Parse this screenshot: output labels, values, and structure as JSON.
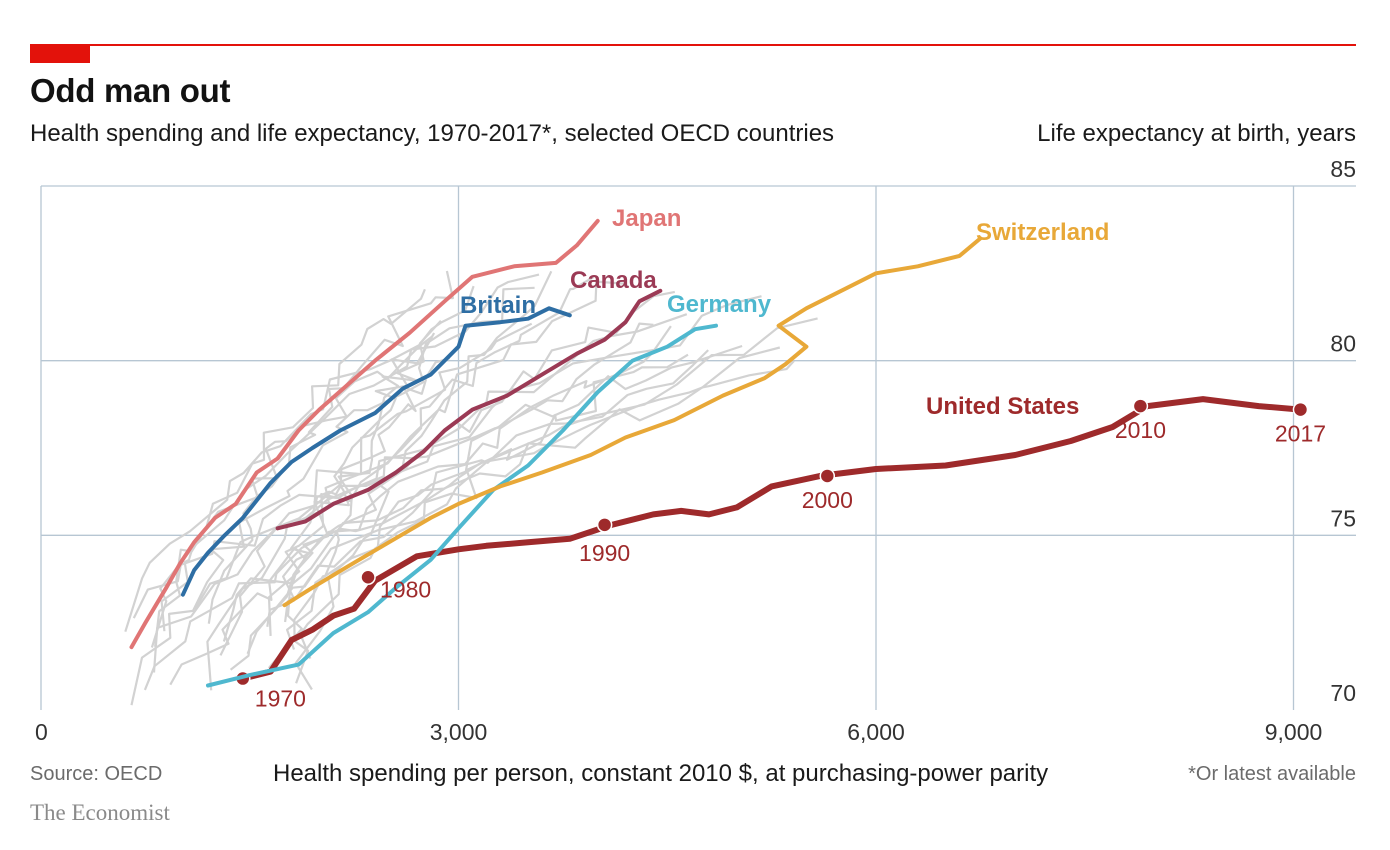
{
  "header": {
    "title": "Odd man out",
    "subtitle": "Health spending and life expectancy, 1970-2017*, selected OECD countries",
    "y_axis_label": "Life expectancy at birth, years"
  },
  "footer": {
    "source": "Source: OECD",
    "x_axis_label": "Health spending per person, constant 2010 $, at purchasing-power parity",
    "footnote": "*Or latest available",
    "brand": "The Economist"
  },
  "colors": {
    "accent": "#e3120b",
    "grid": "#b7c6d3",
    "background_lines": "#d2d2d2",
    "united_states": "#9e2a2b",
    "japan": "#e07575",
    "britain": "#2e6ea4",
    "canada": "#9b3a55",
    "germany": "#4fb8cf",
    "switzerland": "#e8a838"
  },
  "chart_data": {
    "type": "line",
    "title": "Odd man out",
    "xlabel": "Health spending per person, constant 2010 $, at purchasing-power parity",
    "ylabel": "Life expectancy at birth, years",
    "xlim": [
      0,
      9300
    ],
    "ylim": [
      70,
      85
    ],
    "x_ticks": [
      0,
      3000,
      6000,
      9000
    ],
    "x_tick_labels": [
      "0",
      "3,000",
      "6,000",
      "9,000"
    ],
    "y_ticks": [
      70,
      75,
      80,
      85
    ],
    "y_tick_labels": [
      "70",
      "75",
      "80",
      "85"
    ],
    "grid": true,
    "series": [
      {
        "name": "United States",
        "color": "#9e2a2b",
        "points": [
          [
            1450,
            70.9
          ],
          [
            1650,
            71.1
          ],
          [
            1800,
            72.0
          ],
          [
            1950,
            72.3
          ],
          [
            2100,
            72.7
          ],
          [
            2250,
            72.9
          ],
          [
            2400,
            73.7
          ],
          [
            2700,
            74.4
          ],
          [
            3000,
            74.6
          ],
          [
            3200,
            74.7
          ],
          [
            3500,
            74.8
          ],
          [
            3800,
            74.9
          ],
          [
            4100,
            75.3
          ],
          [
            4400,
            75.6
          ],
          [
            4600,
            75.7
          ],
          [
            4800,
            75.6
          ],
          [
            5000,
            75.8
          ],
          [
            5250,
            76.4
          ],
          [
            5600,
            76.7
          ],
          [
            6000,
            76.9
          ],
          [
            6500,
            77.0
          ],
          [
            7000,
            77.3
          ],
          [
            7400,
            77.7
          ],
          [
            7700,
            78.1
          ],
          [
            7950,
            78.7
          ],
          [
            8350,
            78.9
          ],
          [
            8750,
            78.7
          ],
          [
            9050,
            78.6
          ]
        ],
        "labeled_points": [
          {
            "x": 1450,
            "y": 70.9,
            "label": "1970"
          },
          {
            "x": 2350,
            "y": 73.8,
            "label": "1980"
          },
          {
            "x": 4050,
            "y": 75.3,
            "label": "1990"
          },
          {
            "x": 5650,
            "y": 76.7,
            "label": "2000"
          },
          {
            "x": 7900,
            "y": 78.7,
            "label": "2010"
          },
          {
            "x": 9050,
            "y": 78.6,
            "label": "2017"
          }
        ]
      },
      {
        "name": "Japan",
        "color": "#e07575",
        "points": [
          [
            650,
            71.8
          ],
          [
            750,
            72.5
          ],
          [
            900,
            73.5
          ],
          [
            1000,
            74.2
          ],
          [
            1100,
            74.8
          ],
          [
            1250,
            75.5
          ],
          [
            1400,
            75.9
          ],
          [
            1550,
            76.8
          ],
          [
            1700,
            77.2
          ],
          [
            1850,
            78.0
          ],
          [
            2000,
            78.6
          ],
          [
            2200,
            79.3
          ],
          [
            2400,
            80.0
          ],
          [
            2650,
            80.8
          ],
          [
            2900,
            81.7
          ],
          [
            3100,
            82.4
          ],
          [
            3400,
            82.7
          ],
          [
            3700,
            82.8
          ],
          [
            3850,
            83.3
          ],
          [
            4000,
            84.0
          ]
        ]
      },
      {
        "name": "Britain",
        "color": "#2e6ea4",
        "points": [
          [
            1020,
            73.3
          ],
          [
            1100,
            74.0
          ],
          [
            1200,
            74.5
          ],
          [
            1320,
            75.0
          ],
          [
            1450,
            75.5
          ],
          [
            1550,
            76.0
          ],
          [
            1650,
            76.5
          ],
          [
            1800,
            77.1
          ],
          [
            1950,
            77.5
          ],
          [
            2150,
            78.0
          ],
          [
            2400,
            78.5
          ],
          [
            2600,
            79.2
          ],
          [
            2800,
            79.6
          ],
          [
            3000,
            80.4
          ],
          [
            3050,
            81.0
          ],
          [
            3300,
            81.1
          ],
          [
            3500,
            81.2
          ],
          [
            3650,
            81.5
          ],
          [
            3800,
            81.3
          ]
        ]
      },
      {
        "name": "Canada",
        "color": "#9b3a55",
        "points": [
          [
            1700,
            75.2
          ],
          [
            1900,
            75.4
          ],
          [
            2100,
            75.9
          ],
          [
            2350,
            76.3
          ],
          [
            2550,
            76.8
          ],
          [
            2750,
            77.4
          ],
          [
            2900,
            78.0
          ],
          [
            3100,
            78.6
          ],
          [
            3350,
            79.0
          ],
          [
            3600,
            79.6
          ],
          [
            3850,
            80.2
          ],
          [
            4050,
            80.6
          ],
          [
            4200,
            81.1
          ],
          [
            4300,
            81.7
          ],
          [
            4450,
            82.0
          ]
        ]
      },
      {
        "name": "Germany",
        "color": "#4fb8cf",
        "points": [
          [
            1200,
            70.7
          ],
          [
            1500,
            71.0
          ],
          [
            1850,
            71.3
          ],
          [
            2100,
            72.2
          ],
          [
            2350,
            72.8
          ],
          [
            2550,
            73.5
          ],
          [
            2800,
            74.3
          ],
          [
            3000,
            75.2
          ],
          [
            3250,
            76.3
          ],
          [
            3500,
            77.0
          ],
          [
            3750,
            78.0
          ],
          [
            4000,
            79.1
          ],
          [
            4250,
            80.0
          ],
          [
            4500,
            80.4
          ],
          [
            4700,
            80.9
          ],
          [
            4850,
            81.0
          ]
        ]
      },
      {
        "name": "Switzerland",
        "color": "#e8a838",
        "points": [
          [
            1750,
            73.0
          ],
          [
            1950,
            73.5
          ],
          [
            2200,
            74.1
          ],
          [
            2500,
            74.8
          ],
          [
            2800,
            75.5
          ],
          [
            3000,
            75.9
          ],
          [
            3300,
            76.4
          ],
          [
            3600,
            76.8
          ],
          [
            3950,
            77.3
          ],
          [
            4200,
            77.8
          ],
          [
            4550,
            78.3
          ],
          [
            4900,
            79.0
          ],
          [
            5200,
            79.5
          ],
          [
            5350,
            79.9
          ],
          [
            5500,
            80.4
          ],
          [
            5300,
            81.0
          ],
          [
            5500,
            81.5
          ],
          [
            5800,
            82.1
          ],
          [
            6000,
            82.5
          ],
          [
            6300,
            82.7
          ],
          [
            6600,
            83.0
          ],
          [
            6750,
            83.5
          ]
        ]
      }
    ],
    "background_series_count": 24
  }
}
